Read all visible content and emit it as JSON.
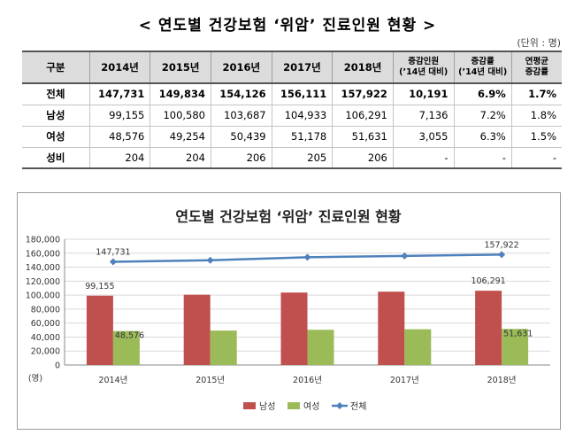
{
  "header": {
    "title": "< 연도별 건강보험 ‘위암’ 진료인원 현황 >",
    "unit": "(단위 : 명)"
  },
  "table": {
    "columns": [
      "구분",
      "2014년",
      "2015년",
      "2016년",
      "2017년",
      "2018년",
      "증감인원",
      "(’14년 대비)",
      "증감률",
      "(’14년 대비)",
      "연평균",
      "증감률"
    ],
    "rows": [
      {
        "label": "전체",
        "values": [
          "147,731",
          "149,834",
          "154,126",
          "156,111",
          "157,922",
          "10,191",
          "6.9%",
          "1.7%"
        ]
      },
      {
        "label": "남성",
        "values": [
          "99,155",
          "100,580",
          "103,687",
          "104,933",
          "106,291",
          "7,136",
          "7.2%",
          "1.8%"
        ]
      },
      {
        "label": "여성",
        "values": [
          "48,576",
          "49,254",
          "50,439",
          "51,178",
          "51,631",
          "3,055",
          "6.3%",
          "1.5%"
        ]
      },
      {
        "label": "성비",
        "values": [
          "204",
          "204",
          "206",
          "205",
          "206",
          "-",
          "-",
          "-"
        ]
      }
    ]
  },
  "chart_data": {
    "type": "bar",
    "title": "연도별 건강보험 ‘위암’ 진료인원 현황",
    "categories": [
      "2014년",
      "2015년",
      "2016년",
      "2017년",
      "2018년"
    ],
    "series": [
      {
        "name": "남성",
        "type": "bar",
        "color": "#c0504d",
        "values": [
          99155,
          100580,
          103687,
          104933,
          106291
        ]
      },
      {
        "name": "여성",
        "type": "bar",
        "color": "#9bbb59",
        "values": [
          48576,
          49254,
          50439,
          51178,
          51631
        ]
      },
      {
        "name": "전체",
        "type": "line",
        "color": "#4f81bd",
        "values": [
          147731,
          149834,
          154126,
          156111,
          157922
        ]
      }
    ],
    "data_labels": [
      {
        "series": "전체",
        "index": 0,
        "text": "147,731"
      },
      {
        "series": "전체",
        "index": 4,
        "text": "157,922"
      },
      {
        "series": "남성",
        "index": 0,
        "text": "99,155"
      },
      {
        "series": "남성",
        "index": 4,
        "text": "106,291"
      },
      {
        "series": "여성",
        "index": 0,
        "text": "48,576"
      },
      {
        "series": "여성",
        "index": 4,
        "text": "51,631"
      }
    ],
    "ylim": [
      0,
      180000
    ],
    "yticks": [
      0,
      20000,
      40000,
      60000,
      80000,
      100000,
      120000,
      140000,
      160000,
      180000
    ],
    "ytick_labels": [
      "0",
      "20,000",
      "40,000",
      "60,000",
      "80,000",
      "100,000",
      "120,000",
      "140,000",
      "160,000",
      "180,000"
    ],
    "ylabel": "(명)",
    "grid": true,
    "legend": "bottom"
  }
}
